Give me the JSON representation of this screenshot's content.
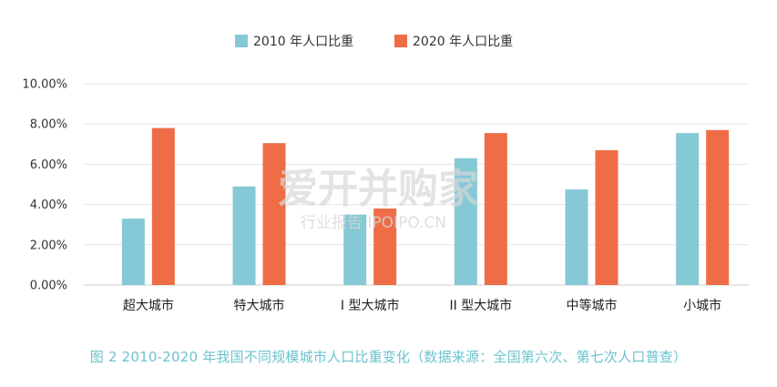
{
  "chart_data": {
    "type": "bar",
    "categories": [
      "超大城市",
      "特大城市",
      "I 型大城市",
      "II 型大城市",
      "中等城市",
      "小城市"
    ],
    "series": [
      {
        "name": "2010 年人口比重",
        "color": "#85c9d6",
        "values": [
          3.3,
          4.9,
          3.5,
          6.3,
          4.75,
          7.55
        ]
      },
      {
        "name": "2020 年人口比重",
        "color": "#ee6d47",
        "values": [
          7.8,
          7.05,
          3.8,
          7.55,
          6.7,
          7.7
        ]
      }
    ],
    "yticks": [
      "0.00%",
      "2.00%",
      "4.00%",
      "6.00%",
      "8.00%",
      "10.00%"
    ],
    "ylim": [
      0,
      10
    ],
    "grid": true,
    "legend_position": "top-center",
    "title": "",
    "xlabel": "",
    "ylabel": ""
  },
  "watermark": {
    "main": "爱开并购家",
    "sub": "行业报告 IPOIPO.CN"
  },
  "caption": "图 2  2010-2020 年我国不同规模城市人口比重变化（数据来源：全国第六次、第七次人口普查）"
}
